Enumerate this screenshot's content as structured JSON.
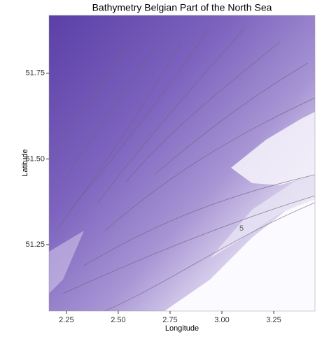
{
  "chart_data": {
    "type": "raster",
    "title": "Bathymetry Belgian Part of the North Sea",
    "x_label": "Longitude",
    "y_label": "Latitude",
    "xlim": [
      2.166,
      3.449
    ],
    "xticks": [
      2.25,
      {
        "value": 2.5,
        "label": "2.50"
      },
      2.75,
      {
        "value": 3.0,
        "label": "3.00"
      },
      3.25
    ],
    "ylim": [
      51.056,
      51.919
    ],
    "yticks": [
      51.25,
      {
        "value": 51.5,
        "label": "51.50"
      },
      51.75
    ],
    "annotations": [
      "5"
    ]
  }
}
